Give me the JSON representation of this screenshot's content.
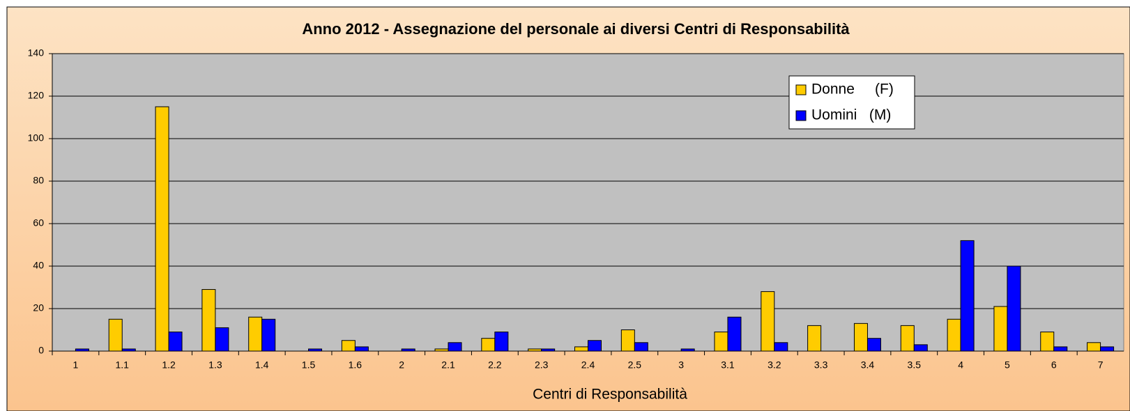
{
  "chart_data": {
    "type": "bar",
    "title": "Anno 2012 - Assegnazione del personale ai diversi Centri di Responsabilità",
    "x_label": "Centri di Responsabilità",
    "categories": [
      "1",
      "1.1",
      "1.2",
      "1.3",
      "1.4",
      "1.5",
      "1.6",
      "2",
      "2.1",
      "2.2",
      "2.3",
      "2.4",
      "2.5",
      "3",
      "3.1",
      "3.2",
      "3.3",
      "3.4",
      "3.5",
      "4",
      "5",
      "6",
      "7"
    ],
    "series": [
      {
        "name": "Donne     (F)",
        "color": "#ffcc00",
        "values": [
          0,
          15,
          115,
          29,
          16,
          0,
          5,
          0,
          1,
          6,
          1,
          2,
          10,
          0,
          9,
          28,
          12,
          13,
          12,
          15,
          21,
          9,
          4
        ]
      },
      {
        "name": "Uomini   (M)",
        "color": "#0000ff",
        "values": [
          1,
          1,
          9,
          11,
          15,
          1,
          2,
          1,
          4,
          9,
          1,
          5,
          4,
          1,
          16,
          4,
          0,
          6,
          3,
          52,
          40,
          2,
          2
        ]
      }
    ],
    "ylim": [
      0,
      140
    ],
    "yticks": [
      0,
      20,
      40,
      60,
      80,
      100,
      120,
      140
    ],
    "grid": true,
    "legend": "upper right"
  }
}
